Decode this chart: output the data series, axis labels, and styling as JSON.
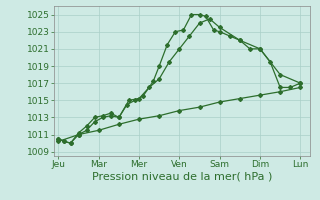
{
  "bg_color": "#ceeae4",
  "grid_color": "#aacfc8",
  "line_color": "#2d6e2d",
  "marker_color": "#2d6e2d",
  "xlabel": "Pression niveau de la mer( hPa )",
  "xlabel_fontsize": 8,
  "tick_fontsize": 6.5,
  "ylim": [
    1008.5,
    1026.0
  ],
  "yticks": [
    1009,
    1011,
    1013,
    1015,
    1017,
    1019,
    1021,
    1023,
    1025
  ],
  "x_labels": [
    "Jeu",
    "Mar",
    "Mer",
    "Ven",
    "Sam",
    "Dim",
    "Lun"
  ],
  "x_positions": [
    0,
    2,
    4,
    6,
    8,
    10,
    12
  ],
  "series1_x": [
    0,
    0.3,
    0.6,
    1.0,
    1.4,
    1.8,
    2.2,
    2.6,
    3.0,
    3.4,
    3.8,
    4.2,
    4.7,
    5.0,
    5.4,
    5.8,
    6.2,
    6.6,
    7.0,
    7.3,
    7.7,
    8.0,
    8.5,
    9.0,
    9.5,
    10.0,
    10.5,
    11.0,
    11.5,
    12.0
  ],
  "series1_y": [
    1010.5,
    1010.2,
    1010.0,
    1011.0,
    1011.5,
    1012.5,
    1013.0,
    1013.2,
    1013.0,
    1014.5,
    1015.0,
    1015.5,
    1017.2,
    1019.0,
    1021.5,
    1023.0,
    1023.2,
    1025.0,
    1025.0,
    1024.8,
    1023.2,
    1023.0,
    1022.5,
    1022.0,
    1021.0,
    1021.0,
    1019.5,
    1016.5,
    1016.5,
    1017.0
  ],
  "series2_x": [
    0,
    0.3,
    0.6,
    1.0,
    1.4,
    1.8,
    2.2,
    2.6,
    3.0,
    3.5,
    4.0,
    4.5,
    5.0,
    5.5,
    6.0,
    6.5,
    7.0,
    7.5,
    8.0,
    9.0,
    10.0,
    11.0,
    12.0
  ],
  "series2_y": [
    1010.5,
    1010.2,
    1010.0,
    1011.2,
    1012.0,
    1013.0,
    1013.2,
    1013.5,
    1013.0,
    1015.0,
    1015.2,
    1016.5,
    1017.5,
    1019.5,
    1021.0,
    1022.5,
    1024.0,
    1024.5,
    1023.5,
    1022.0,
    1021.0,
    1018.0,
    1017.0
  ],
  "series3_x": [
    0,
    1,
    2,
    3,
    4,
    5,
    6,
    7,
    8,
    9,
    10,
    11,
    12
  ],
  "series3_y": [
    1010.2,
    1011.0,
    1011.5,
    1012.2,
    1012.8,
    1013.2,
    1013.8,
    1014.2,
    1014.8,
    1015.2,
    1015.6,
    1016.0,
    1016.5
  ]
}
